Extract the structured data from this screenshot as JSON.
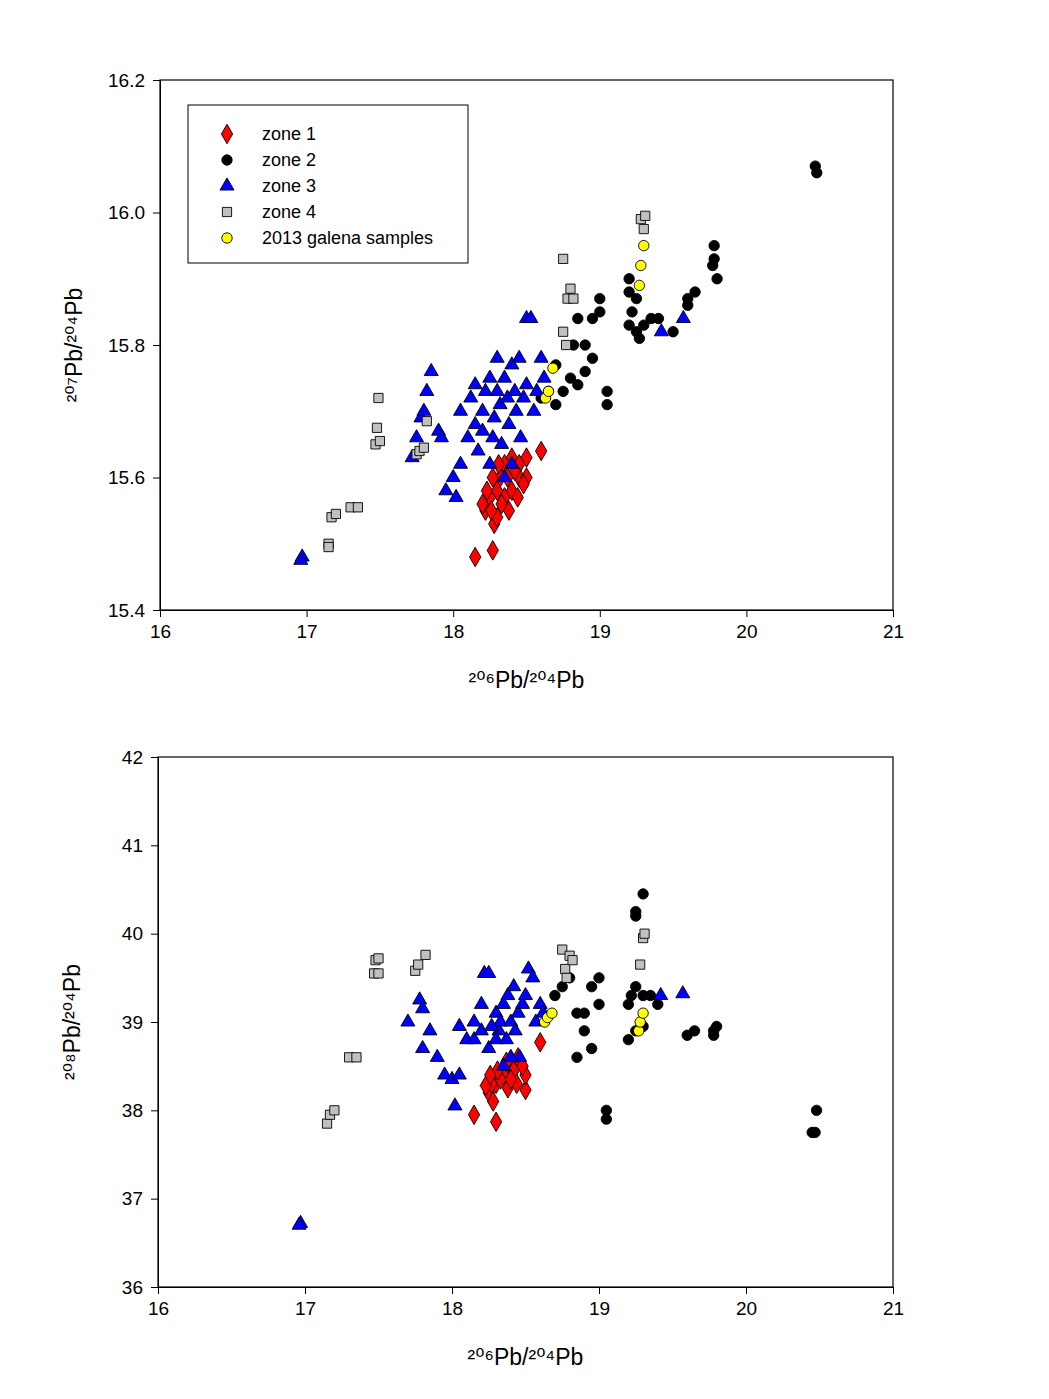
{
  "chart_data": [
    {
      "type": "scatter",
      "xlabel": "²⁰⁶Pb/²⁰⁴Pb",
      "ylabel": "²⁰⁷Pb/²⁰⁴Pb",
      "xlim": [
        16,
        21
      ],
      "ylim": [
        15.4,
        16.2
      ],
      "xticks": [
        16,
        17,
        18,
        19,
        20,
        21
      ],
      "yticks": [
        15.4,
        15.6,
        15.8,
        {
          "value": 16,
          "label": "16.0"
        },
        16.2
      ],
      "legend": "upper left",
      "series": [
        {
          "name": "zone 1",
          "color": "#ff0000",
          "marker": "diamond",
          "x": [
            18.15,
            18.27,
            18.6,
            18.5,
            18.45,
            18.4,
            18.35,
            18.32,
            18.3,
            18.25,
            18.22,
            18.2,
            18.28,
            18.3,
            18.35,
            18.4,
            18.45,
            18.5,
            18.38,
            18.33,
            18.27,
            18.42,
            18.48,
            18.23,
            18.37,
            18.31,
            18.44,
            18.26
          ],
          "y": [
            15.48,
            15.49,
            15.64,
            15.63,
            15.62,
            15.63,
            15.62,
            15.6,
            15.58,
            15.57,
            15.55,
            15.56,
            15.53,
            15.54,
            15.57,
            15.58,
            15.6,
            15.6,
            15.55,
            15.56,
            15.6,
            15.61,
            15.59,
            15.58,
            15.6,
            15.62,
            15.57,
            15.55
          ]
        },
        {
          "name": "zone 2",
          "color": "#000000",
          "marker": "circle",
          "x": [
            18.6,
            18.65,
            18.7,
            18.75,
            18.8,
            18.85,
            18.9,
            18.85,
            18.9,
            18.95,
            19.0,
            19.0,
            18.95,
            19.05,
            19.05,
            19.2,
            19.2,
            19.25,
            19.22,
            19.2,
            19.25,
            19.3,
            19.35,
            19.4,
            19.5,
            19.6,
            19.6,
            19.65,
            19.78,
            19.78,
            19.77,
            19.8,
            20.47,
            20.48,
            18.82,
            18.7,
            19.27
          ],
          "y": [
            15.72,
            15.73,
            15.77,
            15.73,
            15.75,
            15.74,
            15.76,
            15.84,
            15.8,
            15.84,
            15.85,
            15.87,
            15.78,
            15.73,
            15.71,
            15.9,
            15.88,
            15.87,
            15.85,
            15.83,
            15.82,
            15.83,
            15.84,
            15.84,
            15.82,
            15.87,
            15.86,
            15.88,
            15.95,
            15.93,
            15.92,
            15.9,
            16.07,
            16.06,
            15.8,
            15.71,
            15.81
          ]
        },
        {
          "name": "zone 3",
          "color": "#0000ff",
          "marker": "triangle",
          "x": [
            16.97,
            16.96,
            17.72,
            17.75,
            17.78,
            17.8,
            17.85,
            17.82,
            17.9,
            17.92,
            17.95,
            18.0,
            18.02,
            18.05,
            18.05,
            18.1,
            18.12,
            18.15,
            18.17,
            18.2,
            18.22,
            18.25,
            18.25,
            18.28,
            18.3,
            18.32,
            18.33,
            18.35,
            18.37,
            18.38,
            18.4,
            18.42,
            18.43,
            18.45,
            18.46,
            18.48,
            18.5,
            18.5,
            18.53,
            18.55,
            18.57,
            18.6,
            18.62,
            18.3,
            18.2,
            18.4,
            18.35,
            19.42,
            19.57,
            18.15,
            18.27
          ],
          "y": [
            15.48,
            15.475,
            15.63,
            15.66,
            15.69,
            15.7,
            15.76,
            15.73,
            15.67,
            15.66,
            15.58,
            15.6,
            15.57,
            15.62,
            15.7,
            15.66,
            15.72,
            15.68,
            15.64,
            15.7,
            15.73,
            15.75,
            15.62,
            15.69,
            15.78,
            15.71,
            15.65,
            15.75,
            15.72,
            15.68,
            15.77,
            15.73,
            15.7,
            15.78,
            15.66,
            15.72,
            15.74,
            15.84,
            15.84,
            15.7,
            15.73,
            15.78,
            15.75,
            15.73,
            15.67,
            15.62,
            15.6,
            15.82,
            15.84,
            15.74,
            15.66
          ]
        },
        {
          "name": "zone 4",
          "color": "#c0c0c0",
          "marker": "square",
          "x": [
            17.15,
            17.15,
            17.17,
            17.2,
            17.3,
            17.35,
            17.47,
            17.48,
            17.49,
            17.5,
            17.75,
            17.77,
            17.8,
            17.82,
            18.75,
            18.75,
            18.77,
            18.78,
            18.8,
            18.82,
            19.28,
            19.3,
            19.31
          ],
          "y": [
            15.5,
            15.495,
            15.54,
            15.545,
            15.555,
            15.555,
            15.65,
            15.675,
            15.72,
            15.655,
            15.635,
            15.64,
            15.645,
            15.685,
            15.93,
            15.82,
            15.8,
            15.87,
            15.885,
            15.87,
            15.99,
            15.975,
            15.995
          ]
        },
        {
          "name": "2013 galena samples",
          "color": "#ffff00",
          "marker": "circle",
          "x": [
            18.63,
            18.65,
            18.68,
            19.27,
            19.28,
            19.3
          ],
          "y": [
            15.72,
            15.73,
            15.765,
            15.89,
            15.92,
            15.95
          ]
        }
      ]
    },
    {
      "type": "scatter",
      "xlabel": "²⁰⁶Pb/²⁰⁴Pb",
      "ylabel": "²⁰⁸Pb/²⁰⁴Pb",
      "xlim": [
        16,
        21
      ],
      "ylim": [
        36,
        42
      ],
      "xticks": [
        16,
        17,
        18,
        19,
        20,
        21
      ],
      "yticks": [
        36,
        37,
        38,
        39,
        40,
        41,
        42
      ],
      "series": [
        {
          "color": "#ff0000",
          "marker": "diamond",
          "x": [
            18.15,
            18.3,
            18.6,
            18.5,
            18.25,
            18.28,
            18.3,
            18.35,
            18.4,
            18.45,
            18.5,
            18.38,
            18.33,
            18.27,
            18.42,
            18.48,
            18.23,
            18.37,
            18.31,
            18.44,
            18.26,
            18.4
          ],
          "y": [
            37.95,
            37.87,
            38.77,
            38.23,
            38.2,
            38.1,
            38.3,
            38.4,
            38.5,
            38.6,
            38.4,
            38.25,
            38.35,
            38.3,
            38.45,
            38.5,
            38.28,
            38.55,
            38.45,
            38.3,
            38.4,
            38.35
          ]
        },
        {
          "color": "#000000",
          "marker": "circle",
          "x": [
            18.7,
            18.75,
            18.8,
            18.85,
            18.9,
            18.95,
            18.9,
            19.0,
            18.95,
            19.0,
            19.05,
            19.05,
            19.2,
            19.25,
            19.25,
            19.25,
            19.3,
            19.2,
            19.3,
            19.25,
            19.35,
            19.4,
            19.6,
            19.65,
            19.78,
            19.78,
            19.8,
            20.47,
            20.48,
            20.45,
            18.85,
            19.22,
            19.3
          ],
          "y": [
            39.3,
            39.4,
            39.5,
            38.6,
            39.1,
            38.7,
            38.9,
            39.5,
            39.4,
            39.2,
            38.0,
            37.9,
            38.8,
            38.9,
            40.25,
            40.2,
            40.45,
            39.2,
            39.3,
            39.4,
            39.3,
            39.2,
            38.85,
            38.9,
            38.9,
            38.85,
            38.95,
            37.75,
            38.0,
            37.75,
            39.1,
            39.3,
            38.95
          ]
        },
        {
          "color": "#0000ff",
          "marker": "triangle",
          "x": [
            16.97,
            16.96,
            17.7,
            17.78,
            17.8,
            17.85,
            17.8,
            17.9,
            17.95,
            18.0,
            18.02,
            18.05,
            18.05,
            18.1,
            18.15,
            18.2,
            18.22,
            18.25,
            18.25,
            18.3,
            18.32,
            18.33,
            18.35,
            18.37,
            18.38,
            18.4,
            18.42,
            18.43,
            18.45,
            18.46,
            18.48,
            18.5,
            18.52,
            18.55,
            18.57,
            18.6,
            18.62,
            18.3,
            18.2,
            18.4,
            18.35,
            19.42,
            19.57,
            18.15,
            18.27
          ],
          "y": [
            36.72,
            36.7,
            39.0,
            39.25,
            39.15,
            38.9,
            38.7,
            38.6,
            38.4,
            38.35,
            38.05,
            38.4,
            38.95,
            38.8,
            39.0,
            39.2,
            39.55,
            39.55,
            38.7,
            39.1,
            38.9,
            39.0,
            39.2,
            38.8,
            39.3,
            39.0,
            39.4,
            38.9,
            39.1,
            38.6,
            39.2,
            39.3,
            39.6,
            39.5,
            39.0,
            39.2,
            39.1,
            38.8,
            38.9,
            38.6,
            38.5,
            39.3,
            39.32,
            38.8,
            38.95
          ]
        },
        {
          "color": "#c0c0c0",
          "marker": "square",
          "x": [
            17.15,
            17.17,
            17.2,
            17.3,
            17.35,
            17.47,
            17.48,
            17.5,
            17.5,
            17.75,
            17.77,
            17.82,
            18.75,
            18.77,
            18.78,
            18.8,
            18.82,
            19.28,
            19.3,
            19.31
          ],
          "y": [
            37.85,
            37.95,
            38.0,
            38.6,
            38.6,
            39.55,
            39.7,
            39.72,
            39.55,
            39.58,
            39.65,
            39.76,
            39.82,
            39.6,
            39.5,
            39.75,
            39.7,
            39.65,
            39.95,
            40.0
          ]
        },
        {
          "color": "#ffff00",
          "marker": "circle",
          "x": [
            18.63,
            18.65,
            18.68,
            19.27,
            19.28,
            19.3
          ],
          "y": [
            39.0,
            39.05,
            39.1,
            38.9,
            39.0,
            39.1
          ]
        }
      ]
    }
  ]
}
